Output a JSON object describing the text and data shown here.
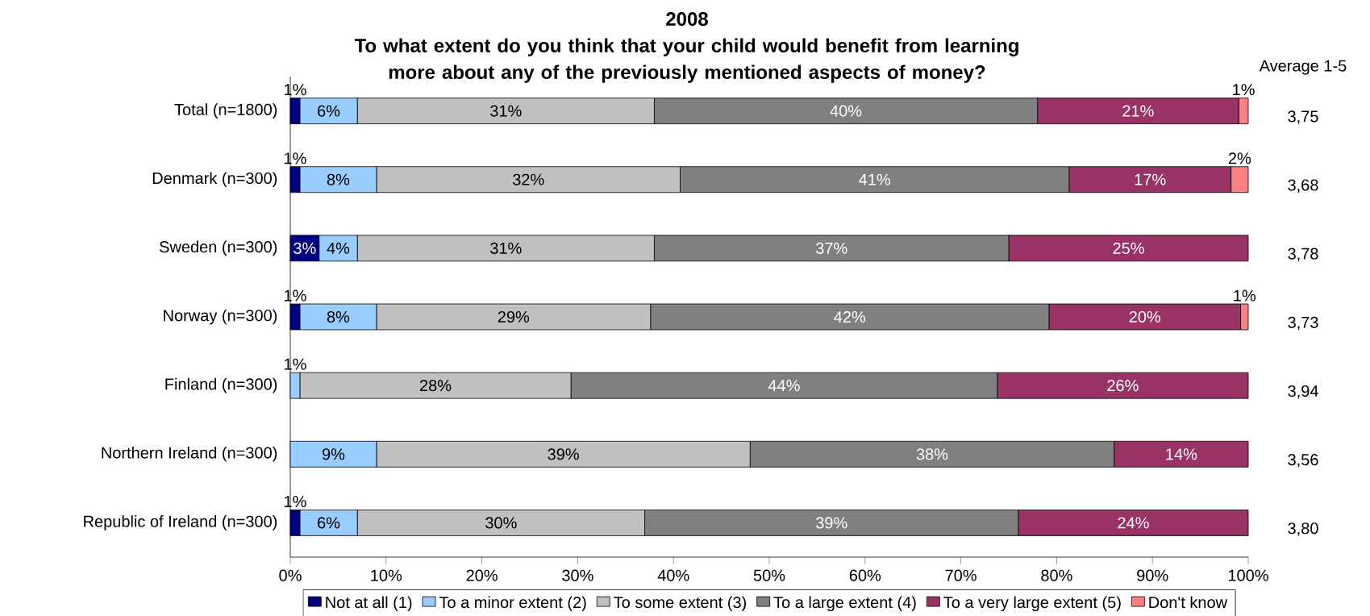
{
  "chart_data": {
    "type": "bar",
    "orientation": "horizontal",
    "stacked": true,
    "title": "2008",
    "subtitle": "To what extent do you think that your child would benefit from learning more about any of the previously mentioned aspects of money?",
    "categories": [
      "Total (n=1800)",
      "Denmark (n=300)",
      "Sweden (n=300)",
      "Norway (n=300)",
      "Finland (n=300)",
      "Northern Ireland (n=300)",
      "Republic of Ireland (n=300)"
    ],
    "series": [
      {
        "name": "Not at all (1)",
        "color": "#000080",
        "values": [
          1,
          1,
          3,
          1,
          null,
          null,
          1
        ],
        "value_labels": [
          "1%",
          "1%",
          "3%",
          "1%",
          null,
          null,
          "1%"
        ]
      },
      {
        "name": "To a minor extent (2)",
        "color": "#99ccff",
        "values": [
          6,
          8,
          4,
          8,
          1,
          9,
          6
        ],
        "value_labels": [
          "6%",
          "8%",
          "4%",
          "8%",
          "1%",
          "9%",
          "6%"
        ]
      },
      {
        "name": "To some extent (3)",
        "color": "#c0c0c0",
        "values": [
          31,
          31.7,
          31,
          28.6,
          28.3,
          39,
          30
        ],
        "value_labels": [
          "31%",
          "32%",
          "31%",
          "29%",
          "28%",
          "39%",
          "30%"
        ]
      },
      {
        "name": "To a large extent (4)",
        "color": "#808080",
        "values": [
          40,
          40.6,
          37,
          41.6,
          44.5,
          38,
          39
        ],
        "value_labels": [
          "40%",
          "41%",
          "37%",
          "42%",
          "44%",
          "38%",
          "39%"
        ]
      },
      {
        "name": "To a very large extent (5)",
        "color": "#993366",
        "values": [
          21,
          16.9,
          25,
          20,
          26.2,
          14,
          24
        ],
        "value_labels": [
          "21%",
          "17%",
          "25%",
          "20%",
          "26%",
          "14%",
          "24%"
        ]
      },
      {
        "name": "Don't know",
        "color": "#ff8080",
        "values": [
          1,
          1.8,
          null,
          0.8,
          null,
          null,
          null
        ],
        "value_labels": [
          "1%",
          "2%",
          null,
          "1%",
          null,
          null,
          null
        ]
      }
    ],
    "xlim": [
      0,
      100
    ],
    "xticks": [
      {
        "value": 0,
        "label": "0%"
      },
      {
        "value": 10,
        "label": "10%"
      },
      {
        "value": 20,
        "label": "20%"
      },
      {
        "value": 30,
        "label": "30%"
      },
      {
        "value": 40,
        "label": "40%"
      },
      {
        "value": 50,
        "label": "50%"
      },
      {
        "value": 60,
        "label": "60%"
      },
      {
        "value": 70,
        "label": "70%"
      },
      {
        "value": 80,
        "label": "80%"
      },
      {
        "value": 90,
        "label": "90%"
      },
      {
        "value": 100,
        "label": "100%"
      }
    ],
    "annotations": [
      "Average 1-5",
      "3,75",
      "3,68",
      "3,78",
      "3,73",
      "3,94",
      "3,56",
      "3,80"
    ],
    "legend": "bottom"
  }
}
